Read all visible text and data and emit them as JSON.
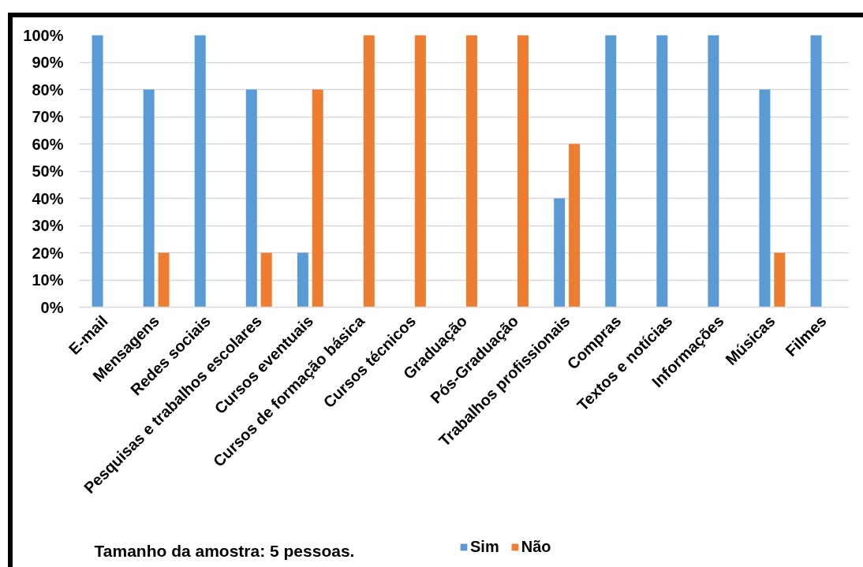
{
  "chart_data": {
    "type": "bar",
    "categories": [
      "E-mail",
      "Mensagens",
      "Redes sociais",
      "Pesquisas e trabalhos escolares",
      "Cursos eventuais",
      "Cursos de formação básica",
      "Cursos técnicos",
      "Graduação",
      "Pós-Graduação",
      "Trabalhos profissionais",
      "Compras",
      "Textos e notícias",
      "Informações",
      "Músicas",
      "Filmes"
    ],
    "series": [
      {
        "name": "Sim",
        "color": "#5b9bd5",
        "values": [
          100,
          80,
          100,
          80,
          20,
          null,
          null,
          null,
          null,
          40,
          100,
          100,
          100,
          80,
          100
        ]
      },
      {
        "name": "Não",
        "color": "#ed7d31",
        "values": [
          null,
          20,
          null,
          20,
          80,
          100,
          100,
          100,
          100,
          60,
          null,
          null,
          null,
          20,
          null
        ]
      }
    ],
    "ylim": [
      0,
      100
    ],
    "yticks": [
      {
        "value": 0,
        "label": "0%"
      },
      {
        "value": 10,
        "label": "10%"
      },
      {
        "value": 20,
        "label": "20%"
      },
      {
        "value": 30,
        "label": "30%"
      },
      {
        "value": 40,
        "label": "40%"
      },
      {
        "value": 50,
        "label": "50%"
      },
      {
        "value": 60,
        "label": "60%"
      },
      {
        "value": 70,
        "label": "70%"
      },
      {
        "value": 80,
        "label": "80%"
      },
      {
        "value": 90,
        "label": "90%"
      },
      {
        "value": 100,
        "label": "100%"
      }
    ],
    "grid": "y",
    "legend": "bottom",
    "annotations": [
      "Tamanho da amostra: 5 pessoas."
    ]
  }
}
